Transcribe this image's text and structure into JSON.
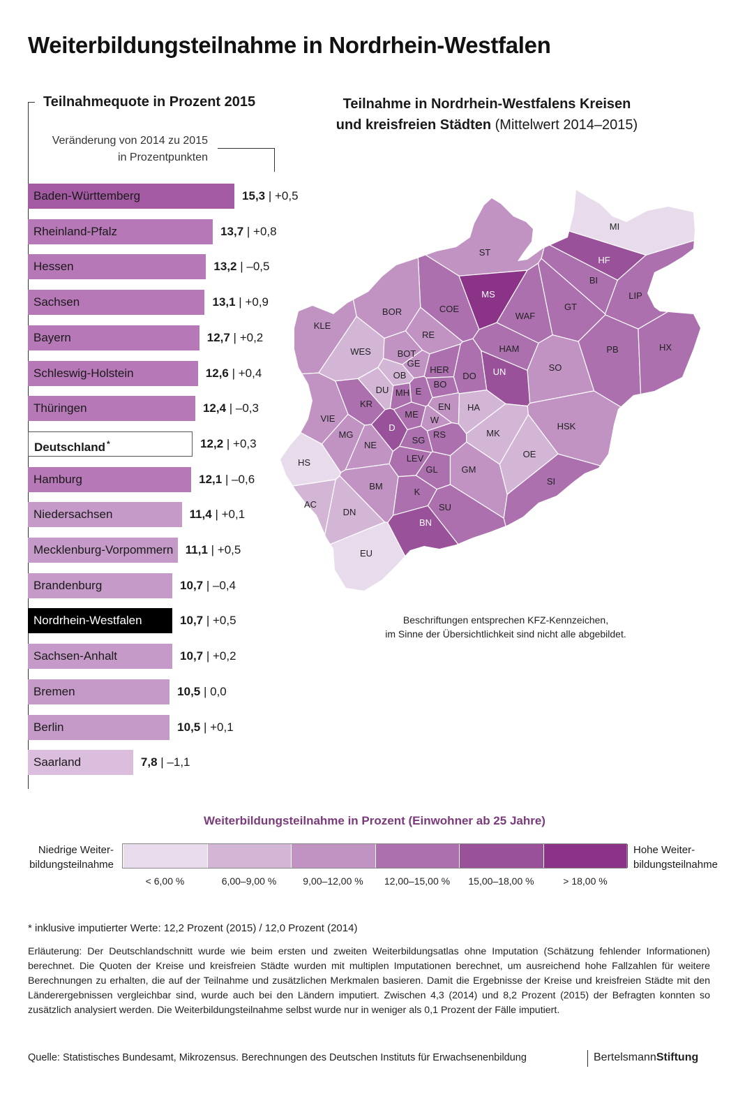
{
  "title": "Weiterbildungsteilnahme in Nordrhein-Westfalen",
  "bar_panel": {
    "title": "Teilnahmequote in Prozent 2015",
    "change_label_line1": "Veränderung von 2014 zu 2015",
    "change_label_line2": "in Prozentpunkten"
  },
  "chart_data": {
    "type": "bar",
    "orientation": "horizontal",
    "title": "Teilnahmequote in Prozent 2015",
    "categories": [
      "Baden-Württemberg",
      "Rheinland-Pfalz",
      "Hessen",
      "Sachsen",
      "Bayern",
      "Schleswig-Holstein",
      "Thüringen",
      "Deutschland",
      "Hamburg",
      "Niedersachsen",
      "Mecklenburg-Vorpommern",
      "Brandenburg",
      "Nordrhein-Westfalen",
      "Sachsen-Anhalt",
      "Bremen",
      "Berlin",
      "Saarland"
    ],
    "values": [
      15.3,
      13.7,
      13.2,
      13.1,
      12.7,
      12.6,
      12.4,
      12.2,
      12.1,
      11.4,
      11.1,
      10.7,
      10.7,
      10.7,
      10.5,
      10.5,
      7.8
    ],
    "value_labels": [
      "15,3",
      "13,7",
      "13,2",
      "13,1",
      "12,7",
      "12,6",
      "12,4",
      "12,2",
      "12,1",
      "11,4",
      "11,1",
      "10,7",
      "10,7",
      "10,7",
      "10,5",
      "10,5",
      "7,8"
    ],
    "changes": [
      "+0,5",
      "+0,8",
      "–0,5",
      "+0,9",
      "+0,2",
      "+0,4",
      "–0,3",
      "+0,3",
      "–0,6",
      "+0,1",
      "+0,5",
      "–0,4",
      "+0,5",
      "+0,2",
      "0,0",
      "+0,1",
      "–1,1"
    ],
    "colors": [
      "#a35aa3",
      "#b778b7",
      "#b778b7",
      "#b778b7",
      "#b778b7",
      "#b778b7",
      "#b778b7",
      "#ffffff",
      "#b778b7",
      "#c69ac8",
      "#c69ac8",
      "#c69ac8",
      "#000000",
      "#c69ac8",
      "#c69ac8",
      "#c69ac8",
      "#dbbede"
    ],
    "highlight": {
      "Deutschland": "outlined",
      "Nordrhein-Westfalen": "black"
    },
    "footnote_marker": {
      "Deutschland": "*"
    },
    "xlim": [
      0,
      20
    ]
  },
  "map": {
    "title_bold_line1": "Teilnahme in Nordrhein-Westfalens Kreisen",
    "title_bold_line2": "und kreisfreien Städten",
    "title_normal": " (Mittelwert 2014–2015)",
    "note_line1": "Beschriftungen entsprechen KFZ-Kennzeichen,",
    "note_line2": "im Sinne der Übersichtlichkeit sind nicht alle abgebildet.",
    "district_classes": {
      "MI": 0,
      "HF": 4,
      "BI": 3,
      "LIP": 3,
      "ST": 2,
      "MS": 5,
      "COE": 3,
      "WAF": 3,
      "GT": 3,
      "BOR": 2,
      "KLE": 2,
      "RE": 2,
      "HAM": 3,
      "PB": 3,
      "HX": 3,
      "SO": 2,
      "UN": 4,
      "WES": 1,
      "BOT": 2,
      "GE": 2,
      "OB": 1,
      "HER": 3,
      "BO": 3,
      "DO": 3,
      "E": 3,
      "MH": 3,
      "DU": 1,
      "KR": 3,
      "VIE": 2,
      "D": 4,
      "ME": 3,
      "EN": 2,
      "HA": 1,
      "W": 2,
      "MG": 2,
      "NE": 2,
      "SG": 3,
      "RS": 3,
      "MK": 1,
      "HSK": 2,
      "HS": 0,
      "LEV": 3,
      "GL": 3,
      "GM": 2,
      "OE": 1,
      "SI": 3,
      "AC": 1,
      "BM": 2,
      "K": 3,
      "DN": 1,
      "SU": 3,
      "BN": 4,
      "EU": 0
    }
  },
  "legend": {
    "title": "Weiterbildungsteilnahme in Prozent (Einwohner ab 25 Jahre)",
    "low_line1": "Niedrige Weiter-",
    "low_line2": "bildungsteilnahme",
    "high_line1": "Hohe Weiter-",
    "high_line2": "bildungsteilnahme",
    "classes": [
      {
        "label": "< 6,00 %",
        "color": "#e8dcec"
      },
      {
        "label": "6,00–9,00 %",
        "color": "#d3b6d6"
      },
      {
        "label": "9,00–12,00 %",
        "color": "#c193c3"
      },
      {
        "label": "12,00–15,00 %",
        "color": "#ac70ae"
      },
      {
        "label": "15,00–18,00 %",
        "color": "#995199"
      },
      {
        "label": "> 18,00 %",
        "color": "#8a3387"
      }
    ]
  },
  "footnote": "* inklusive imputierter Werte: 12,2 Prozent (2015) / 12,0 Prozent (2014)",
  "explanation": "Erläuterung: Der Deutschlandschnitt wurde wie beim ersten und zweiten Weiterbildungsatlas ohne Imputation (Schätzung fehlender Informationen) berechnet. Die Quoten der Kreise und kreisfreien Städte wurden mit multiplen Imputationen berechnet, um ausreichend hohe Fallzahlen für weitere Berechnungen zu erhalten, die auf der Teilnahme und zusätzlichen Merkmalen basieren. Damit die Ergebnisse der Kreise und kreisfreien Städte mit den Länderergebnissen vergleichbar sind, wurde auch bei den Ländern imputiert. Zwischen 4,3 (2014) und 8,2 Prozent (2015) der Befragten konnten so zusätzlich analysiert werden. Die Weiterbildungsteilnahme selbst wurde nur in weniger als 0,1 Prozent der Fälle imputiert.",
  "source": "Quelle: Statistisches Bundesamt, Mikrozensus. Berechnungen des Deutschen Instituts für Erwachsenenbildung",
  "brand": {
    "part1": "Bertelsmann",
    "part2": "Stiftung"
  }
}
